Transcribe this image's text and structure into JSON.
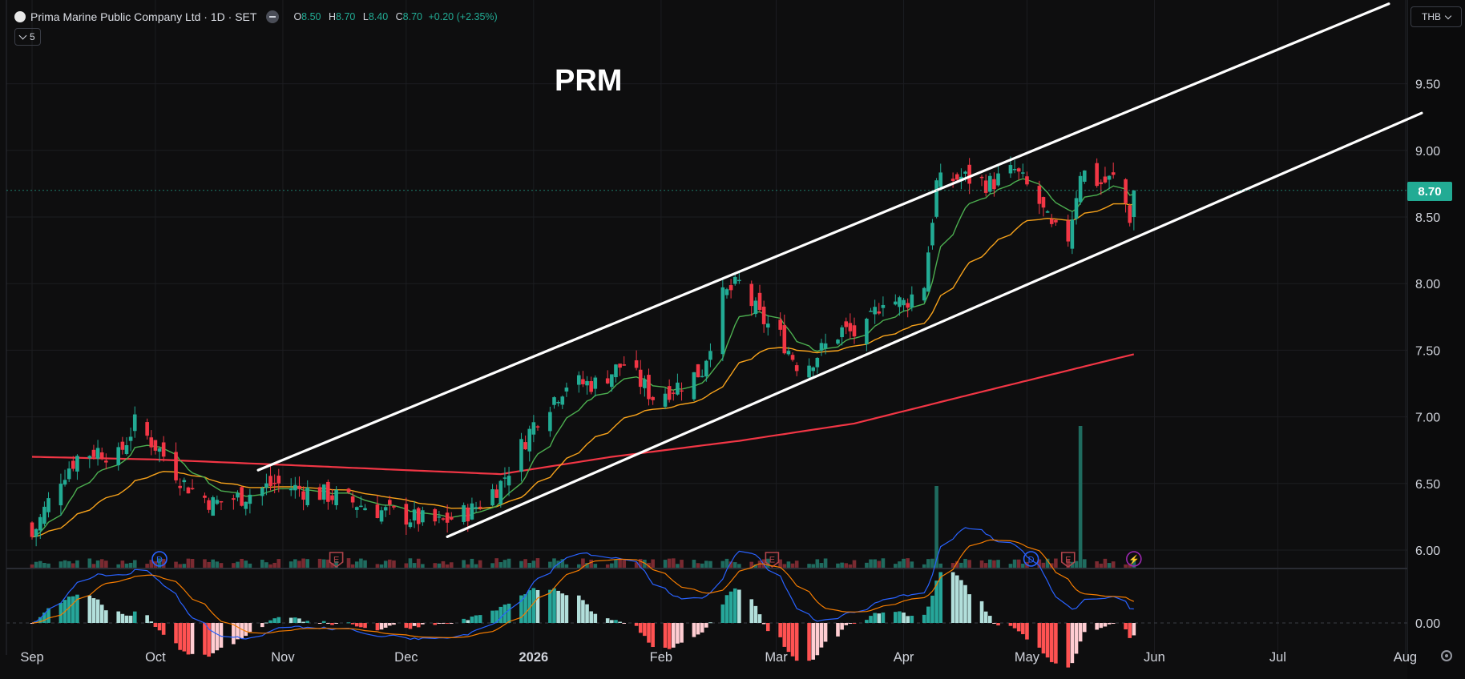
{
  "header": {
    "title": "Prima Marine Public Company Ltd · 1D · SET",
    "o_label": "O",
    "o": "8.50",
    "h_label": "H",
    "h": "8.70",
    "l_label": "L",
    "l": "8.40",
    "c_label": "C",
    "c": "8.70",
    "change": "+0.20 (+2.35%)",
    "collapse_count": "5",
    "currency": "THB"
  },
  "annotation": "PRM",
  "last_price": "8.70",
  "colors": {
    "up": "#22ab94",
    "down": "#f23645",
    "ema_short": "#4caf50",
    "ema_mid": "#f7a21b",
    "ema_long": "#f23645",
    "macd": "#2962ff",
    "signal": "#f57c00",
    "trend_lines": "#ffffff"
  },
  "chart_data": {
    "type": "candlestick",
    "yaxis_ticks": [
      "9.50",
      "9.00",
      "8.50",
      "8.00",
      "7.50",
      "7.00",
      "6.50",
      "6.00"
    ],
    "macd_tick": "0.00",
    "xaxis_ticks": [
      "Sep",
      "Oct",
      "Nov",
      "Dec",
      "2026",
      "Feb",
      "Mar",
      "Apr",
      "May",
      "Jun",
      "Jul",
      "Aug"
    ],
    "ohlc_keyframes": [
      {
        "date": "2025-09-01",
        "close": 6.1
      },
      {
        "date": "2025-09-04",
        "close": 6.3
      },
      {
        "date": "2025-09-08",
        "close": 6.55
      },
      {
        "date": "2025-09-12",
        "close": 6.7
      },
      {
        "date": "2025-09-17",
        "close": 6.75
      },
      {
        "date": "2025-09-22",
        "close": 6.7
      },
      {
        "date": "2025-09-26",
        "close": 6.95
      },
      {
        "date": "2025-10-02",
        "close": 6.75
      },
      {
        "date": "2025-10-08",
        "close": 6.5
      },
      {
        "date": "2025-10-15",
        "close": 6.35
      },
      {
        "date": "2025-10-22",
        "close": 6.4
      },
      {
        "date": "2025-10-30",
        "close": 6.5
      },
      {
        "date": "2025-11-06",
        "close": 6.45
      },
      {
        "date": "2025-11-14",
        "close": 6.4
      },
      {
        "date": "2025-11-24",
        "close": 6.3
      },
      {
        "date": "2025-12-01",
        "close": 6.25
      },
      {
        "date": "2025-12-09",
        "close": 6.2
      },
      {
        "date": "2025-12-17",
        "close": 6.3
      },
      {
        "date": "2025-12-24",
        "close": 6.5
      },
      {
        "date": "2026-01-02",
        "close": 7.0
      },
      {
        "date": "2026-01-09",
        "close": 7.25
      },
      {
        "date": "2026-01-16",
        "close": 7.25
      },
      {
        "date": "2026-01-23",
        "close": 7.4
      },
      {
        "date": "2026-01-30",
        "close": 7.15
      },
      {
        "date": "2026-02-06",
        "close": 7.25
      },
      {
        "date": "2026-02-11",
        "close": 7.35
      },
      {
        "date": "2026-02-16",
        "close": 7.9
      },
      {
        "date": "2026-02-20",
        "close": 8.0
      },
      {
        "date": "2026-02-25",
        "close": 7.75
      },
      {
        "date": "2026-03-02",
        "close": 7.6
      },
      {
        "date": "2026-03-07",
        "close": 7.35
      },
      {
        "date": "2026-03-12",
        "close": 7.5
      },
      {
        "date": "2026-03-17",
        "close": 7.65
      },
      {
        "date": "2026-03-22",
        "close": 7.6
      },
      {
        "date": "2026-03-27",
        "close": 7.9
      },
      {
        "date": "2026-04-01",
        "close": 7.85
      },
      {
        "date": "2026-04-06",
        "close": 8.0
      },
      {
        "date": "2026-04-09",
        "close": 8.75
      },
      {
        "date": "2026-04-15",
        "close": 8.8
      },
      {
        "date": "2026-04-22",
        "close": 8.75
      },
      {
        "date": "2026-04-28",
        "close": 8.85
      },
      {
        "date": "2026-05-04",
        "close": 8.6
      },
      {
        "date": "2026-05-07",
        "close": 8.4
      },
      {
        "date": "2026-05-11",
        "close": 8.35
      },
      {
        "date": "2026-05-14",
        "close": 8.85
      },
      {
        "date": "2026-05-19",
        "close": 8.75
      },
      {
        "date": "2026-05-23",
        "close": 8.8
      },
      {
        "date": "2026-05-26",
        "close": 8.5
      },
      {
        "date": "2026-05-27",
        "close": 8.7
      }
    ],
    "ema200_keyframes": [
      {
        "date": "2025-09-01",
        "value": 6.7
      },
      {
        "date": "2025-10-01",
        "value": 6.68
      },
      {
        "date": "2025-11-01",
        "value": 6.64
      },
      {
        "date": "2025-12-01",
        "value": 6.6
      },
      {
        "date": "2025-12-24",
        "value": 6.57
      },
      {
        "date": "2026-01-20",
        "value": 6.7
      },
      {
        "date": "2026-02-20",
        "value": 6.82
      },
      {
        "date": "2026-03-20",
        "value": 6.95
      },
      {
        "date": "2026-04-15",
        "value": 7.15
      },
      {
        "date": "2026-05-27",
        "value": 7.47
      }
    ],
    "trend_lines": [
      {
        "from": {
          "date": "2025-10-26",
          "value": 6.6
        },
        "to": {
          "date": "2026-07-28",
          "value": 10.1
        }
      },
      {
        "from": {
          "date": "2025-12-11",
          "value": 6.1
        },
        "to": {
          "date": "2026-08-05",
          "value": 9.28
        }
      }
    ],
    "volume_spikes": [
      {
        "date": "2026-04-09",
        "note": "high volume"
      },
      {
        "date": "2026-05-14",
        "note": "highest volume"
      }
    ],
    "event_markers": [
      {
        "date": "2025-10-02",
        "type": "D"
      },
      {
        "date": "2025-11-14",
        "type": "E"
      },
      {
        "date": "2026-02-28",
        "type": "E"
      },
      {
        "date": "2026-05-02",
        "type": "D"
      },
      {
        "date": "2026-05-11",
        "type": "E"
      },
      {
        "date": "2026-05-27",
        "type": "flash"
      }
    ]
  }
}
